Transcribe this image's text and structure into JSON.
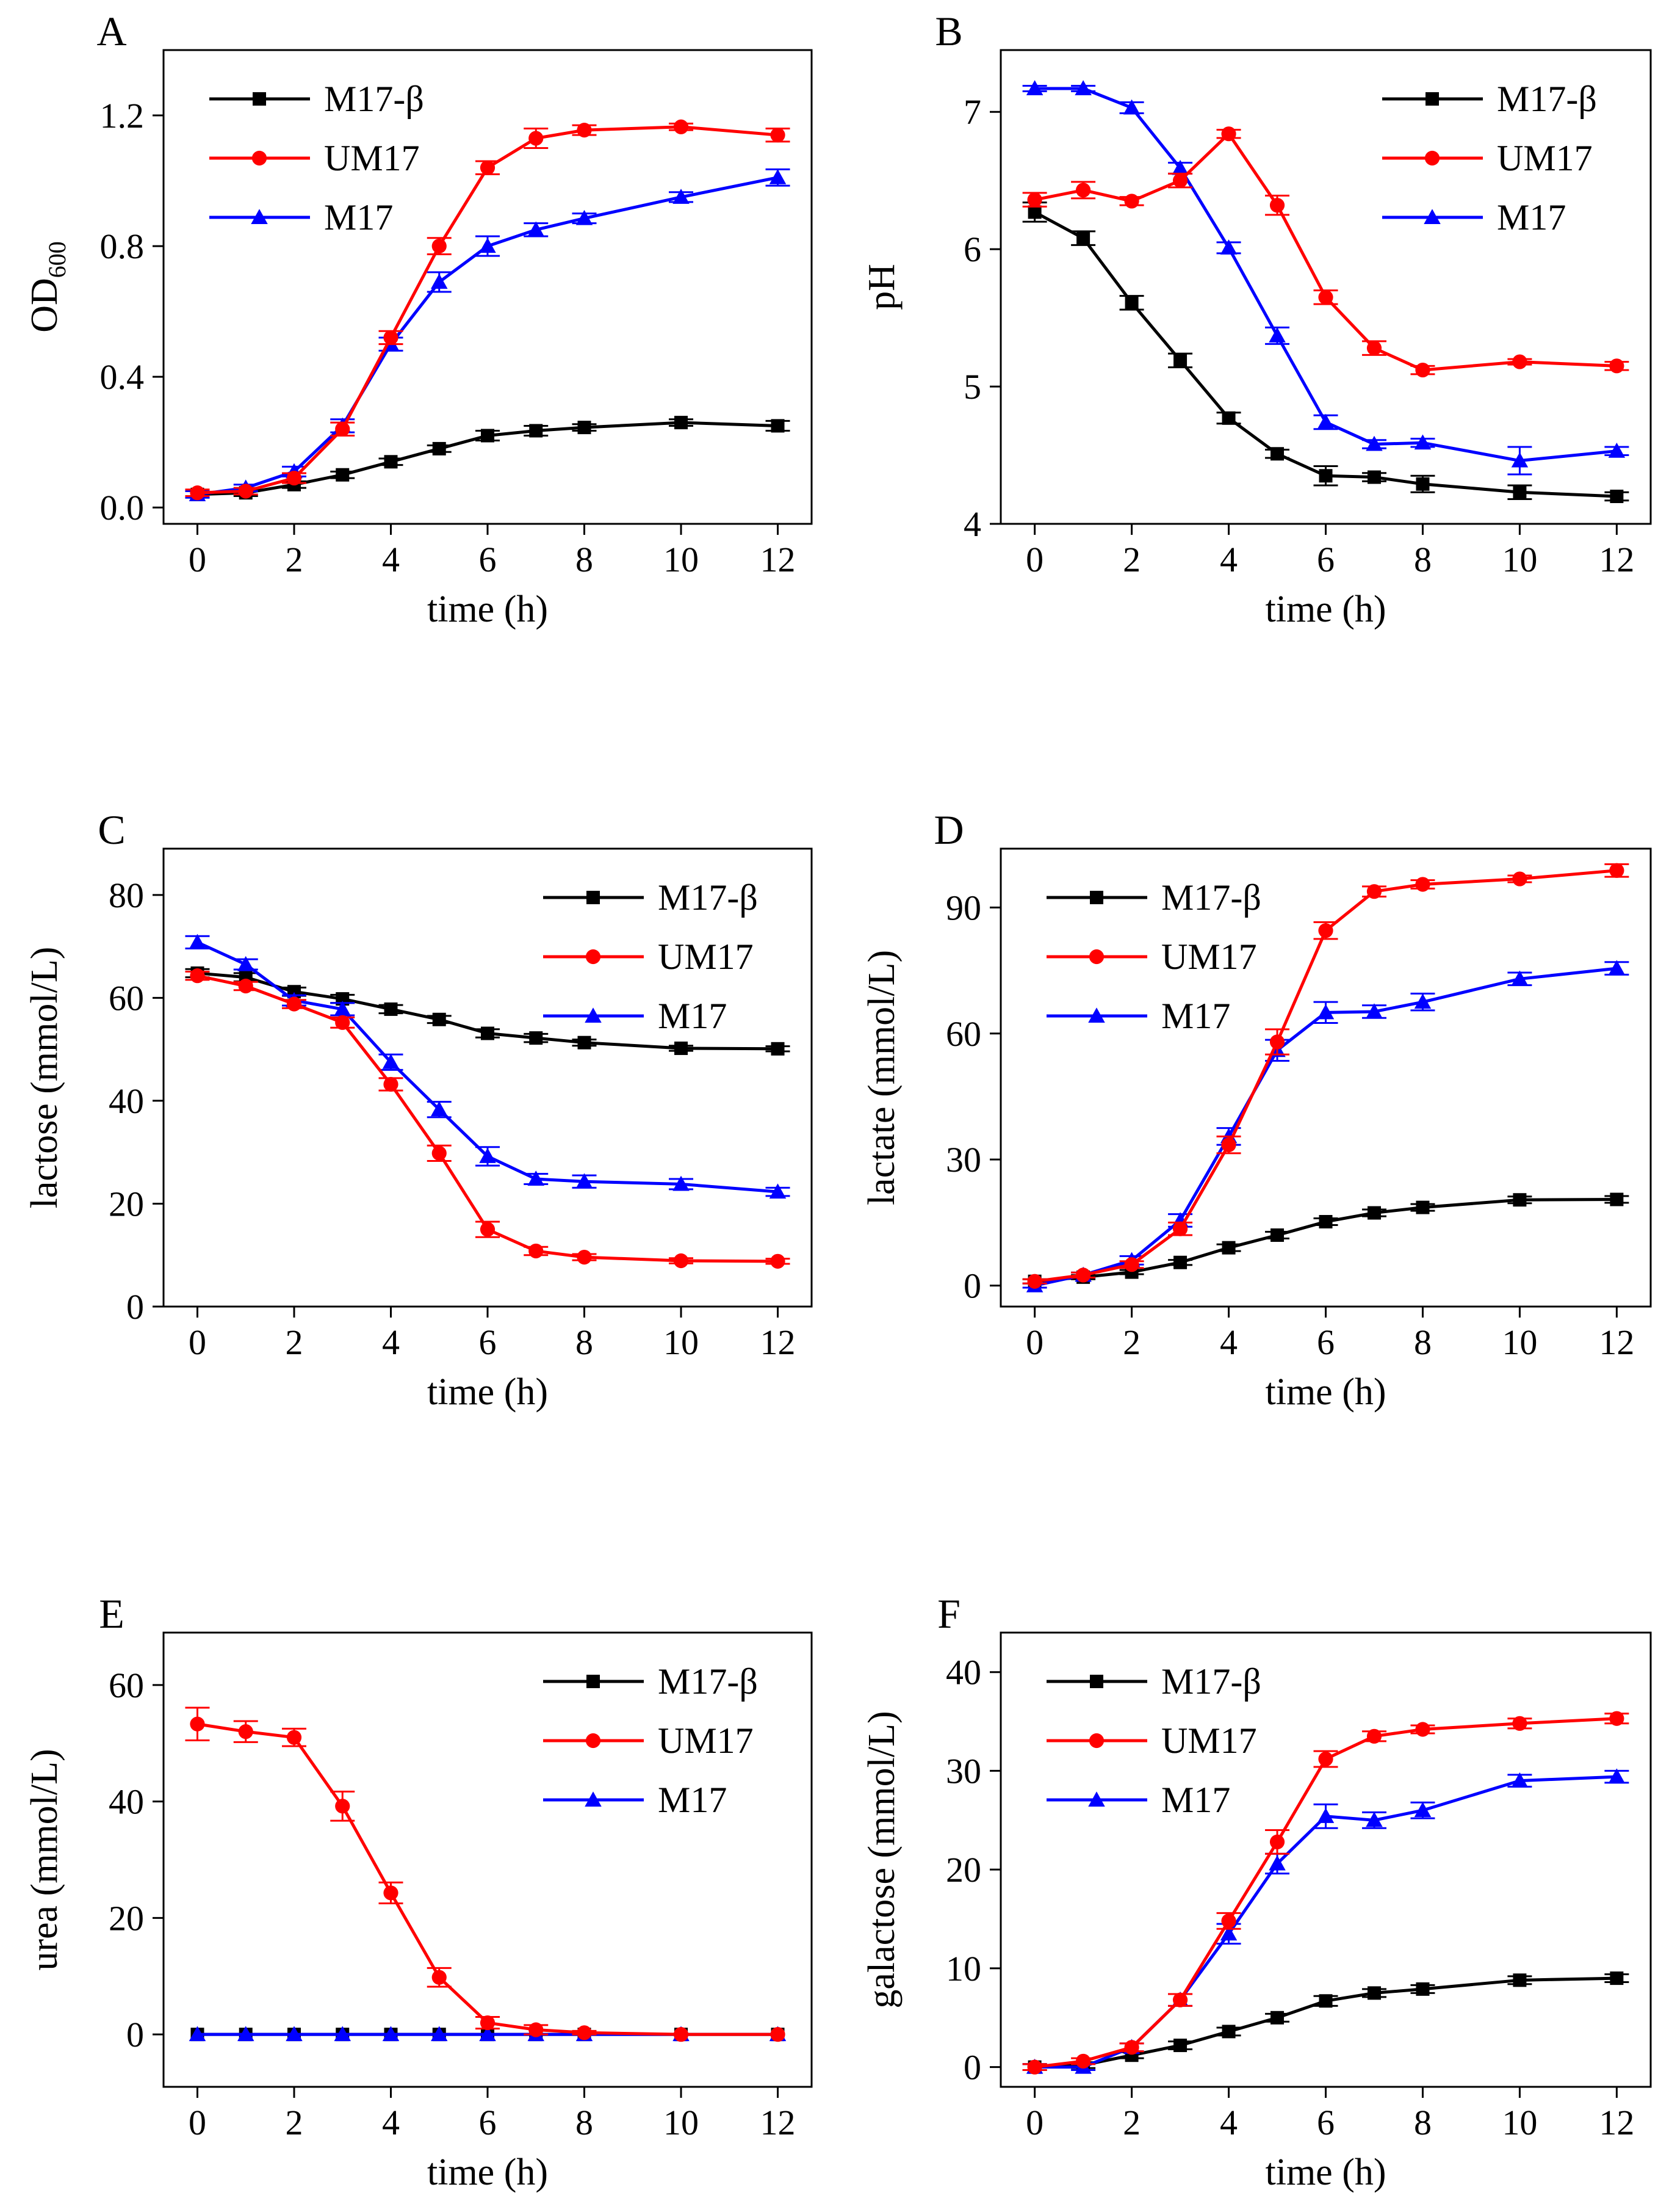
{
  "figure": {
    "series_meta": [
      {
        "name": "M17-β",
        "color": "#000000",
        "marker": "square"
      },
      {
        "name": "UM17",
        "color": "#ff0000",
        "marker": "circle"
      },
      {
        "name": "M17",
        "color": "#0000ff",
        "marker": "triangle"
      }
    ]
  },
  "chart_data": [
    {
      "panel": "A",
      "type": "line",
      "xlabel": "time (h)",
      "ylabel": "OD",
      "ylabel_sub": "600",
      "xlim": [
        -0.7,
        12.7
      ],
      "ylim": [
        -0.05,
        1.4
      ],
      "xticks": [
        0,
        2,
        4,
        6,
        8,
        10,
        12
      ],
      "yticks": [
        0.0,
        0.4,
        0.8,
        1.2
      ],
      "ytick_labels": [
        "0.0",
        "0.4",
        "0.8",
        "1.2"
      ],
      "legend_position": "top-left",
      "x": [
        0,
        1,
        2,
        3,
        4,
        5,
        6,
        7,
        8,
        10,
        12
      ],
      "series": [
        {
          "name": "M17-β",
          "values": [
            0.04,
            0.045,
            0.07,
            0.1,
            0.14,
            0.18,
            0.22,
            0.235,
            0.245,
            0.26,
            0.25
          ],
          "errors": [
            0.01,
            0.01,
            0.01,
            0.01,
            0.01,
            0.01,
            0.015,
            0.015,
            0.01,
            0.01,
            0.015
          ]
        },
        {
          "name": "UM17",
          "values": [
            0.045,
            0.05,
            0.09,
            0.24,
            0.52,
            0.8,
            1.04,
            1.13,
            1.155,
            1.165,
            1.14
          ],
          "errors": [
            0.01,
            0.01,
            0.015,
            0.02,
            0.02,
            0.025,
            0.02,
            0.03,
            0.015,
            0.01,
            0.02
          ]
        },
        {
          "name": "M17",
          "values": [
            0.04,
            0.06,
            0.11,
            0.25,
            0.5,
            0.69,
            0.8,
            0.85,
            0.885,
            0.95,
            1.01
          ],
          "errors": [
            0.01,
            0.01,
            0.015,
            0.02,
            0.02,
            0.03,
            0.03,
            0.02,
            0.015,
            0.015,
            0.025
          ]
        }
      ]
    },
    {
      "panel": "B",
      "type": "line",
      "xlabel": "time (h)",
      "ylabel": "pH",
      "ylabel_sub": "",
      "xlim": [
        -0.7,
        12.7
      ],
      "ylim": [
        4.0,
        7.45
      ],
      "xticks": [
        0,
        2,
        4,
        6,
        8,
        10,
        12
      ],
      "yticks": [
        4,
        5,
        6,
        7
      ],
      "ytick_labels": [
        "4",
        "5",
        "6",
        "7"
      ],
      "legend_position": "top-right",
      "x": [
        0,
        1,
        2,
        3,
        4,
        5,
        6,
        7,
        8,
        10,
        12
      ],
      "series": [
        {
          "name": "M17-β",
          "values": [
            6.27,
            6.08,
            5.61,
            5.19,
            4.77,
            4.51,
            4.35,
            4.34,
            4.29,
            4.23,
            4.2
          ],
          "errors": [
            0.07,
            0.05,
            0.05,
            0.05,
            0.04,
            0.03,
            0.07,
            0.03,
            0.06,
            0.05,
            0.03
          ]
        },
        {
          "name": "UM17",
          "values": [
            6.36,
            6.43,
            6.35,
            6.5,
            6.84,
            6.32,
            5.65,
            5.28,
            5.12,
            5.18,
            5.15
          ],
          "errors": [
            0.05,
            0.06,
            0.03,
            0.05,
            0.03,
            0.07,
            0.05,
            0.05,
            0.03,
            0.02,
            0.03
          ]
        },
        {
          "name": "M17",
          "values": [
            7.17,
            7.17,
            7.03,
            6.59,
            6.01,
            5.37,
            4.74,
            4.58,
            4.59,
            4.46,
            4.53
          ],
          "errors": [
            0.02,
            0.02,
            0.04,
            0.04,
            0.04,
            0.06,
            0.05,
            0.03,
            0.03,
            0.1,
            0.03
          ]
        }
      ]
    },
    {
      "panel": "C",
      "type": "line",
      "xlabel": "time (h)",
      "ylabel": "lactose (mmol/L)",
      "ylabel_sub": "",
      "xlim": [
        -0.7,
        12.7
      ],
      "ylim": [
        0,
        89
      ],
      "xticks": [
        0,
        2,
        4,
        6,
        8,
        10,
        12
      ],
      "yticks": [
        0,
        20,
        40,
        60,
        80
      ],
      "ytick_labels": [
        "0",
        "20",
        "40",
        "60",
        "80"
      ],
      "legend_position": "top-right",
      "x": [
        0,
        1,
        2,
        3,
        4,
        5,
        6,
        7,
        8,
        10,
        12
      ],
      "series": [
        {
          "name": "M17-β",
          "values": [
            64.8,
            64.0,
            61.2,
            59.8,
            57.8,
            55.8,
            53.1,
            52.2,
            51.3,
            50.2,
            50.1
          ],
          "errors": [
            0.8,
            0.8,
            0.8,
            0.8,
            0.8,
            0.7,
            0.8,
            0.8,
            0.6,
            0.5,
            0.5
          ]
        },
        {
          "name": "UM17",
          "values": [
            64.3,
            62.3,
            58.8,
            55.2,
            43.2,
            29.8,
            15.0,
            10.8,
            9.6,
            8.9,
            8.8
          ],
          "errors": [
            0.8,
            0.8,
            0.8,
            1.0,
            1.2,
            1.5,
            1.5,
            0.8,
            0.6,
            0.5,
            0.5
          ]
        },
        {
          "name": "M17",
          "values": [
            70.8,
            66.5,
            59.5,
            57.8,
            47.5,
            38.3,
            29.2,
            24.8,
            24.3,
            23.8,
            22.3
          ],
          "errors": [
            1.2,
            1.0,
            1.0,
            1.2,
            1.5,
            1.5,
            1.8,
            1.0,
            1.2,
            1.0,
            0.8
          ]
        }
      ]
    },
    {
      "panel": "D",
      "type": "line",
      "xlabel": "time (h)",
      "ylabel": "lactate (mmol/L)",
      "ylabel_sub": "",
      "xlim": [
        -0.7,
        12.7
      ],
      "ylim": [
        -5,
        104
      ],
      "xticks": [
        0,
        2,
        4,
        6,
        8,
        10,
        12
      ],
      "yticks": [
        0,
        30,
        60,
        90
      ],
      "ytick_labels": [
        "0",
        "30",
        "60",
        "90"
      ],
      "legend_position": "top-left",
      "x": [
        0,
        1,
        2,
        3,
        4,
        5,
        6,
        7,
        8,
        10,
        12
      ],
      "series": [
        {
          "name": "M17-β",
          "values": [
            1.0,
            2.0,
            3.2,
            5.5,
            9.0,
            12.0,
            15.2,
            17.3,
            18.6,
            20.4,
            20.5
          ],
          "errors": [
            0.5,
            0.5,
            0.5,
            0.6,
            0.8,
            0.8,
            0.8,
            0.8,
            0.8,
            0.8,
            0.8
          ]
        },
        {
          "name": "UM17",
          "values": [
            1.0,
            2.5,
            5.0,
            13.5,
            33.5,
            58.0,
            84.5,
            93.8,
            95.5,
            96.8,
            98.8
          ],
          "errors": [
            0.5,
            0.6,
            0.8,
            1.5,
            2.0,
            3.0,
            2.0,
            1.2,
            1.0,
            0.8,
            1.5
          ]
        },
        {
          "name": "M17",
          "values": [
            0.0,
            2.5,
            6.0,
            15.5,
            35.5,
            56.0,
            65.0,
            65.2,
            67.5,
            73.0,
            75.5
          ],
          "errors": [
            0.5,
            0.6,
            1.0,
            1.5,
            2.0,
            2.5,
            2.5,
            1.5,
            2.0,
            1.5,
            1.5
          ]
        }
      ]
    },
    {
      "panel": "E",
      "type": "line",
      "xlabel": "time (h)",
      "ylabel": "urea (mmol/L)",
      "ylabel_sub": "",
      "xlim": [
        -0.7,
        12.7
      ],
      "ylim": [
        -9,
        69
      ],
      "xticks": [
        0,
        2,
        4,
        6,
        8,
        10,
        12
      ],
      "yticks": [
        0,
        20,
        40,
        60
      ],
      "ytick_labels": [
        "0",
        "20",
        "40",
        "60"
      ],
      "legend_position": "top-right",
      "x": [
        0,
        1,
        2,
        3,
        4,
        5,
        6,
        7,
        8,
        10,
        12
      ],
      "series": [
        {
          "name": "M17-β",
          "values": [
            0,
            0,
            0,
            0,
            0,
            0,
            0,
            0,
            0,
            0,
            0
          ],
          "errors": [
            0,
            0,
            0,
            0,
            0,
            0,
            0,
            0,
            0,
            0,
            0
          ]
        },
        {
          "name": "UM17",
          "values": [
            53.3,
            52.0,
            51.0,
            39.2,
            24.3,
            9.8,
            2.0,
            0.8,
            0.3,
            0.0,
            0.0
          ],
          "errors": [
            2.8,
            1.8,
            1.5,
            2.5,
            1.8,
            1.6,
            1.0,
            0.8,
            0.3,
            0,
            0
          ]
        },
        {
          "name": "M17",
          "values": [
            0,
            0,
            0,
            0,
            0,
            0,
            0,
            0,
            0,
            0,
            0
          ],
          "errors": [
            0,
            0,
            0,
            0,
            0,
            0,
            0,
            0,
            0,
            0,
            0
          ]
        }
      ]
    },
    {
      "panel": "F",
      "type": "line",
      "xlabel": "time (h)",
      "ylabel": "galactose (mmol/L)",
      "ylabel_sub": "",
      "xlim": [
        -0.7,
        12.7
      ],
      "ylim": [
        -2,
        44
      ],
      "xticks": [
        0,
        2,
        4,
        6,
        8,
        10,
        12
      ],
      "yticks": [
        0,
        10,
        20,
        30,
        40
      ],
      "ytick_labels": [
        "0",
        "10",
        "20",
        "30",
        "40"
      ],
      "legend_position": "top-left",
      "x": [
        0,
        1,
        2,
        3,
        4,
        5,
        6,
        7,
        8,
        10,
        12
      ],
      "series": [
        {
          "name": "M17-β",
          "values": [
            0.0,
            0.2,
            1.2,
            2.2,
            3.6,
            5.0,
            6.7,
            7.5,
            7.9,
            8.8,
            9.0
          ],
          "errors": [
            0.3,
            0.3,
            0.3,
            0.4,
            0.4,
            0.4,
            0.5,
            0.4,
            0.4,
            0.4,
            0.4
          ]
        },
        {
          "name": "UM17",
          "values": [
            0.0,
            0.6,
            2.0,
            6.8,
            14.8,
            22.8,
            31.2,
            33.5,
            34.2,
            34.8,
            35.3
          ],
          "errors": [
            0.3,
            0.3,
            0.4,
            0.6,
            0.8,
            1.2,
            0.8,
            0.5,
            0.4,
            0.5,
            0.5
          ]
        },
        {
          "name": "M17",
          "values": [
            0.0,
            0.0,
            2.0,
            6.8,
            13.5,
            20.6,
            25.4,
            25.0,
            26.0,
            29.0,
            29.4
          ],
          "errors": [
            0.3,
            0.3,
            0.4,
            0.6,
            1.0,
            1.0,
            1.2,
            0.8,
            0.8,
            0.6,
            0.6
          ]
        }
      ]
    }
  ]
}
